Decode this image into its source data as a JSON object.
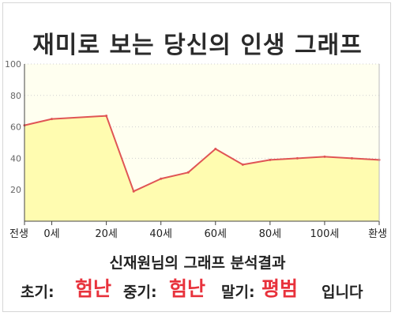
{
  "title": "재미로 보는 당신의 인생 그래프",
  "subtitle": "신재원님의 그래프 분석결과",
  "result": {
    "early_label": "초기:",
    "early_value": "험난",
    "mid_label": "중기:",
    "mid_value": "험난",
    "late_label": "말기:",
    "late_value": "평범",
    "suffix": "입니다"
  },
  "colors": {
    "line": "#e05555",
    "fill": "#fffcb0",
    "plot_bg": "#fffff0",
    "highlight": "#e8323c"
  },
  "chart_data": {
    "type": "area",
    "title": "재미로 보는 당신의 인생 그래프",
    "xlabel": "",
    "ylabel": "",
    "x_ticks": [
      "전생",
      "0세",
      "20세",
      "40세",
      "60세",
      "80세",
      "100세",
      "환생"
    ],
    "y_ticks": [
      20,
      40,
      60,
      80,
      100
    ],
    "ylim": [
      0,
      100
    ],
    "grid": "horizontal dotted",
    "legend": "none",
    "series": [
      {
        "points": [
          {
            "x": "전생",
            "y": 61
          },
          {
            "x": "0세",
            "y": 65
          },
          {
            "x": "20세",
            "y": 67
          },
          {
            "x": "30세",
            "y": 19
          },
          {
            "x": "40세",
            "y": 27
          },
          {
            "x": "50세",
            "y": 31
          },
          {
            "x": "60세",
            "y": 46
          },
          {
            "x": "70세",
            "y": 36
          },
          {
            "x": "80세",
            "y": 39
          },
          {
            "x": "90세",
            "y": 40
          },
          {
            "x": "100세",
            "y": 41
          },
          {
            "x": "110세",
            "y": 40
          },
          {
            "x": "환생",
            "y": 39
          }
        ]
      }
    ]
  }
}
